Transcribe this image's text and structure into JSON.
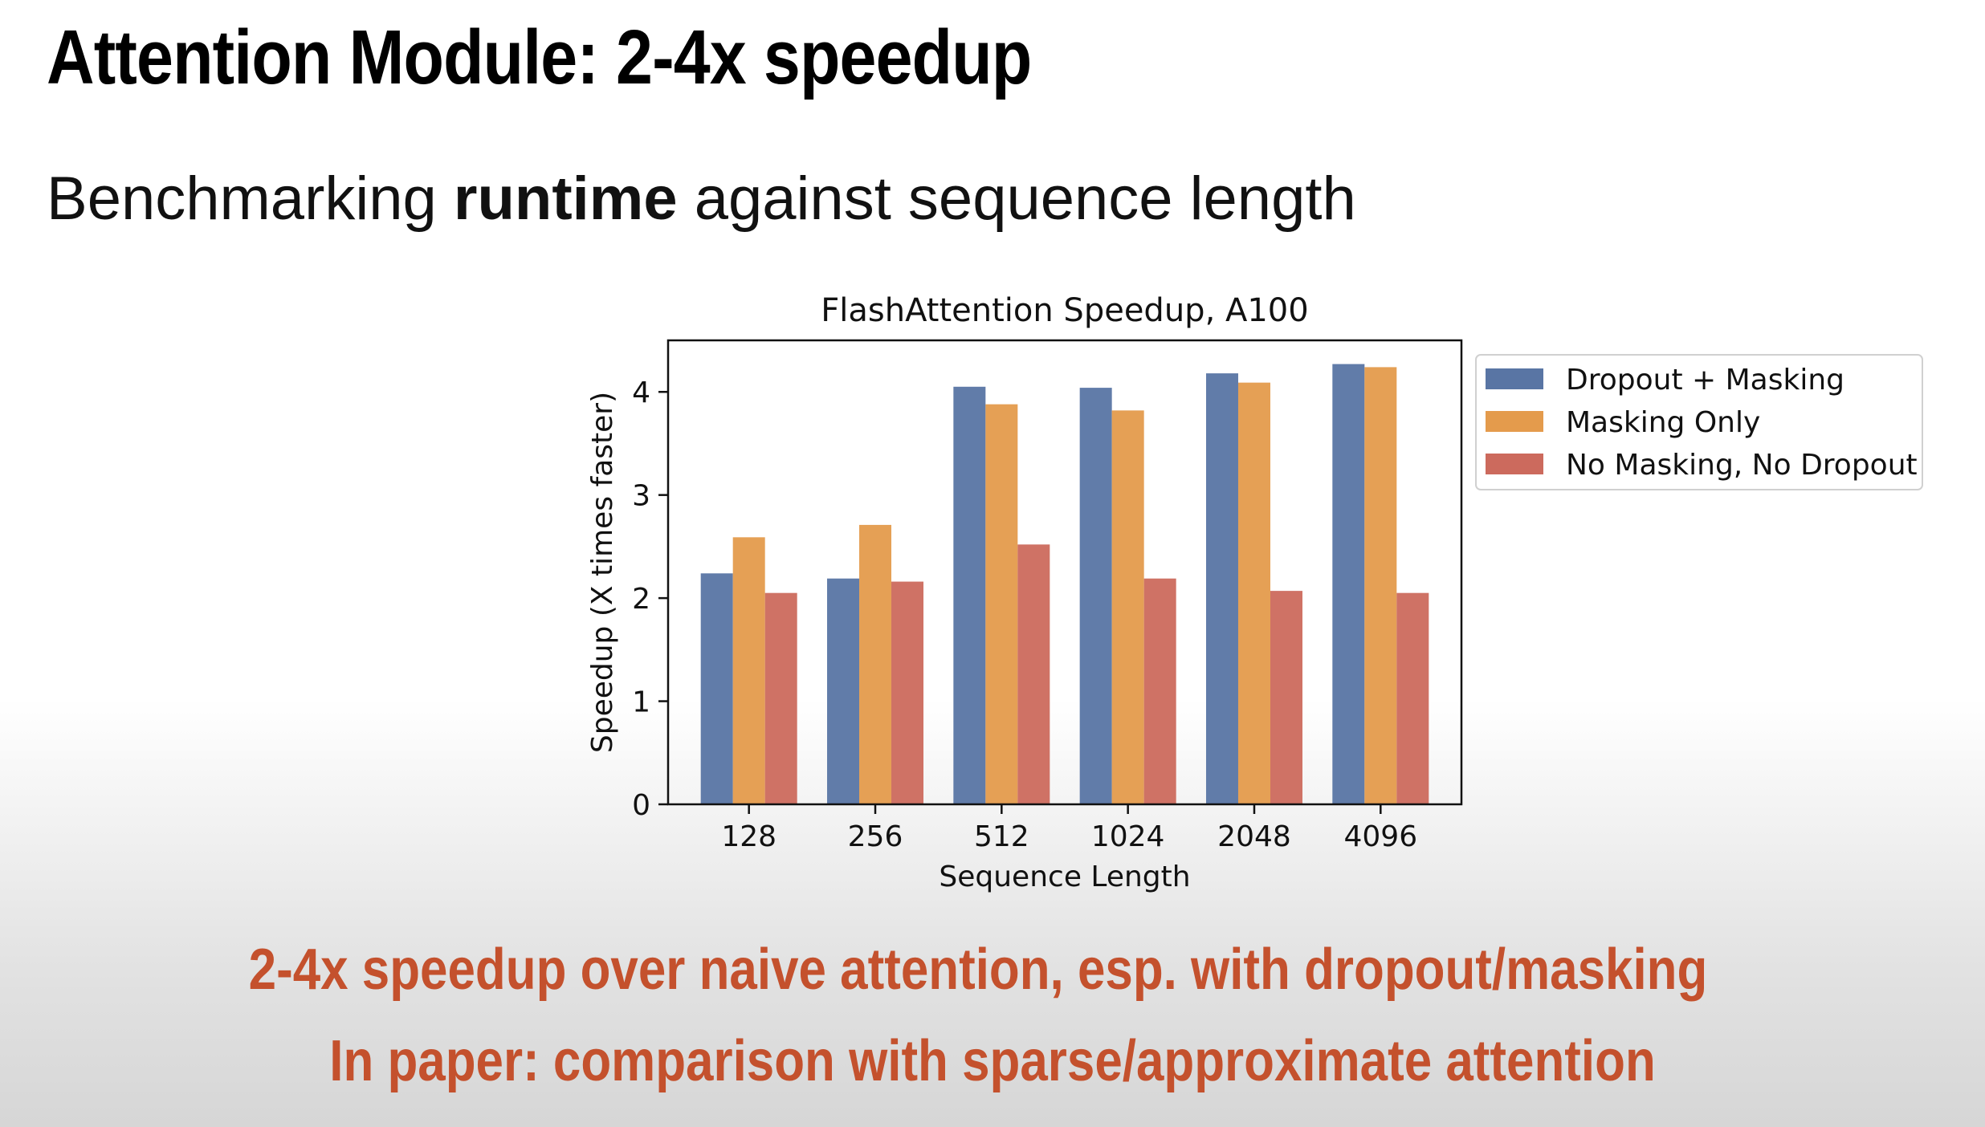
{
  "slide": {
    "title": "Attention Module: 2-4x speedup",
    "subtitle_pre": "Benchmarking ",
    "subtitle_bold": "runtime",
    "subtitle_post": " against sequence length",
    "footer_lines": [
      "2-4x speedup over naive attention, esp. with dropout/masking",
      "In paper: comparison with sparse/approximate attention"
    ]
  },
  "chart_data": {
    "type": "bar",
    "title": "FlashAttention Speedup, A100",
    "xlabel": "Sequence Length",
    "ylabel": "Speedup (X times faster)",
    "categories": [
      "128",
      "256",
      "512",
      "1024",
      "2048",
      "4096"
    ],
    "ylim": [
      0,
      4.5
    ],
    "yticks": [
      0,
      1,
      2,
      3,
      4
    ],
    "grid": false,
    "legend_position": "outside-right-top",
    "series": [
      {
        "name": "Dropout + Masking",
        "color": "#5975a4",
        "values": [
          2.24,
          2.19,
          4.05,
          4.04,
          4.18,
          4.27
        ]
      },
      {
        "name": "Masking Only",
        "color": "#e49b4c",
        "values": [
          2.59,
          2.71,
          3.88,
          3.82,
          4.09,
          4.24
        ]
      },
      {
        "name": "No Masking, No Dropout",
        "color": "#cc6a5d",
        "values": [
          2.05,
          2.16,
          2.52,
          2.19,
          2.07,
          2.05
        ]
      }
    ]
  }
}
